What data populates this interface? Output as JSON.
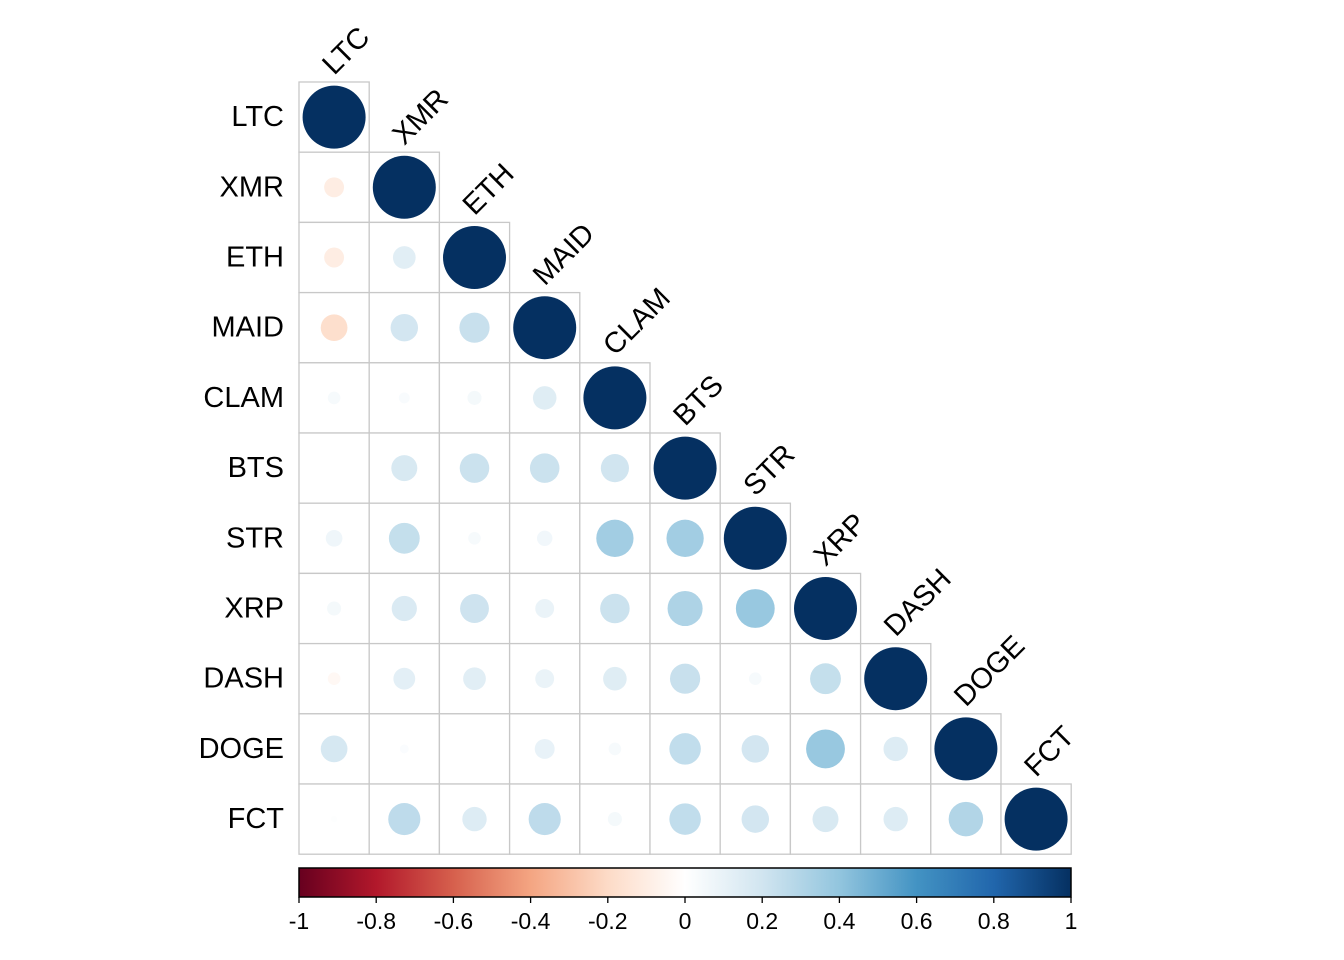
{
  "chart_data": {
    "type": "heatmap",
    "subtype": "correlation-lower-triangle-circles",
    "variables": [
      "LTC",
      "XMR",
      "ETH",
      "MAID",
      "CLAM",
      "BTS",
      "STR",
      "XRP",
      "DASH",
      "DOGE",
      "FCT"
    ],
    "matrix": [
      [
        1.0,
        null,
        null,
        null,
        null,
        null,
        null,
        null,
        null,
        null,
        null
      ],
      [
        -0.1,
        1.0,
        null,
        null,
        null,
        null,
        null,
        null,
        null,
        null,
        null
      ],
      [
        -0.1,
        0.13,
        1.0,
        null,
        null,
        null,
        null,
        null,
        null,
        null,
        null
      ],
      [
        -0.18,
        0.19,
        0.23,
        1.0,
        null,
        null,
        null,
        null,
        null,
        null,
        null
      ],
      [
        0.04,
        0.03,
        0.05,
        0.14,
        1.0,
        null,
        null,
        null,
        null,
        null,
        null
      ],
      [
        0.0,
        0.17,
        0.22,
        0.22,
        0.2,
        1.0,
        null,
        null,
        null,
        null,
        null
      ],
      [
        0.07,
        0.24,
        0.04,
        0.06,
        0.35,
        0.35,
        1.0,
        null,
        null,
        null,
        null
      ],
      [
        0.05,
        0.16,
        0.21,
        0.09,
        0.22,
        0.31,
        0.38,
        1.0,
        null,
        null,
        null
      ],
      [
        -0.04,
        0.12,
        0.13,
        0.09,
        0.14,
        0.23,
        0.04,
        0.24,
        1.0,
        null,
        null
      ],
      [
        0.18,
        0.02,
        0.0,
        0.1,
        0.04,
        0.25,
        0.19,
        0.38,
        0.15,
        1.0,
        null
      ],
      [
        0.01,
        0.26,
        0.15,
        0.26,
        0.05,
        0.25,
        0.19,
        0.17,
        0.15,
        0.3,
        1.0
      ]
    ],
    "colorbar": {
      "range": [
        -1,
        1
      ],
      "tick_labels": [
        "-1",
        "-0.8",
        "-0.6",
        "-0.4",
        "-0.2",
        "0",
        "0.2",
        "0.4",
        "0.6",
        "0.8",
        "1"
      ],
      "colors": [
        "#67001F",
        "#B2182B",
        "#D6604D",
        "#F4A582",
        "#FDDBC7",
        "#FFFFFF",
        "#D1E5F0",
        "#92C5DE",
        "#4393C3",
        "#2166AC",
        "#053061"
      ]
    },
    "grid": true,
    "legend": "bottom"
  }
}
